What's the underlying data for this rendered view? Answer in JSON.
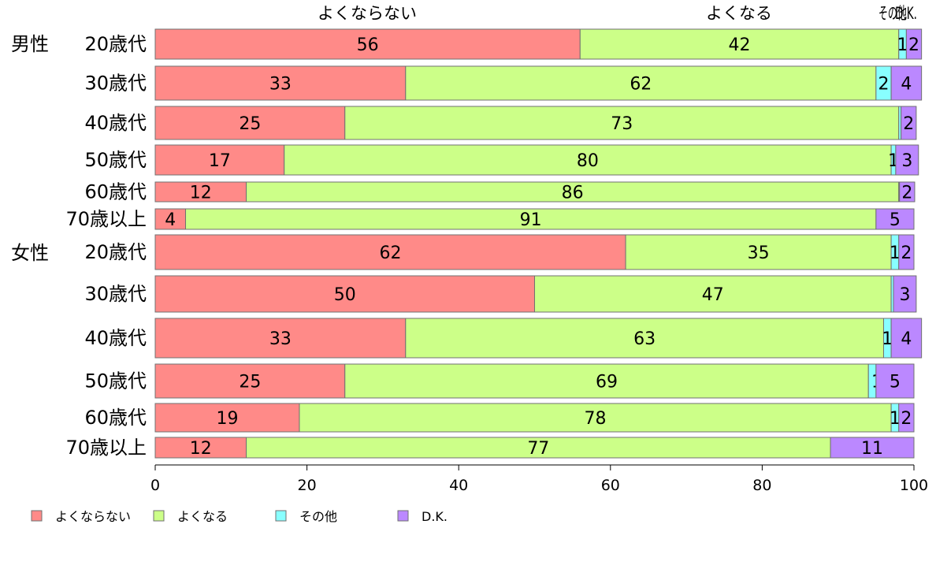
{
  "chart_data": {
    "type": "bar",
    "orientation": "horizontal",
    "stacked": true,
    "title": "",
    "xlabel": "",
    "ylabel": "",
    "xlim": [
      0,
      100
    ],
    "x_ticks": [
      "0",
      "20",
      "40",
      "60",
      "80",
      "100"
    ],
    "grid": false,
    "legend_position": "bottom-left",
    "top_labels": [
      "よくならない",
      "よくなる",
      "その他",
      "D.K."
    ],
    "groups": [
      {
        "label": "男性",
        "rows": [
          {
            "label": "20歳代",
            "values": [
              56,
              42,
              1,
              2
            ],
            "labels": [
              "56",
              "42",
              "1",
              "2"
            ]
          },
          {
            "label": "30歳代",
            "values": [
              33,
              62,
              2,
              4
            ],
            "labels": [
              "33",
              "62",
              "2",
              "4"
            ]
          },
          {
            "label": "40歳代",
            "values": [
              25,
              73,
              0.3,
              2
            ],
            "labels": [
              "25",
              "73",
              "",
              "2"
            ]
          },
          {
            "label": "50歳代",
            "values": [
              17,
              80,
              0.6,
              3
            ],
            "labels": [
              "17",
              "80",
              "1",
              "3"
            ]
          },
          {
            "label": "60歳代",
            "values": [
              12,
              86,
              0.1,
              2
            ],
            "labels": [
              "12",
              "86",
              "",
              "2"
            ]
          },
          {
            "label": "70歳以上",
            "values": [
              4,
              91,
              0,
              5
            ],
            "labels": [
              "4",
              "91",
              "",
              "5"
            ]
          }
        ]
      },
      {
        "label": "女性",
        "rows": [
          {
            "label": "20歳代",
            "values": [
              62,
              35,
              1,
              2
            ],
            "labels": [
              "62",
              "35",
              "1",
              "2"
            ]
          },
          {
            "label": "30歳代",
            "values": [
              50,
              47,
              0.3,
              3
            ],
            "labels": [
              "50",
              "47",
              "",
              "3"
            ]
          },
          {
            "label": "40歳代",
            "values": [
              33,
              63,
              1,
              4
            ],
            "labels": [
              "33",
              "63",
              "1",
              "4"
            ]
          },
          {
            "label": "50歳代",
            "values": [
              25,
              69,
              1,
              5
            ],
            "labels": [
              "25",
              "69",
              "1",
              "5"
            ]
          },
          {
            "label": "60歳代",
            "values": [
              19,
              78,
              1,
              2
            ],
            "labels": [
              "19",
              "78",
              "1",
              "2"
            ]
          },
          {
            "label": "70歳以上",
            "values": [
              12,
              77,
              0,
              11
            ],
            "labels": [
              "12",
              "77",
              "",
              "11"
            ]
          }
        ]
      }
    ],
    "series": [
      {
        "name": "よくならない",
        "color": "#ff8a88"
      },
      {
        "name": "よくなる",
        "color": "#ccff88"
      },
      {
        "name": "その他",
        "color": "#88ffff"
      },
      {
        "name": "D.K.",
        "color": "#bb88ff"
      }
    ]
  }
}
